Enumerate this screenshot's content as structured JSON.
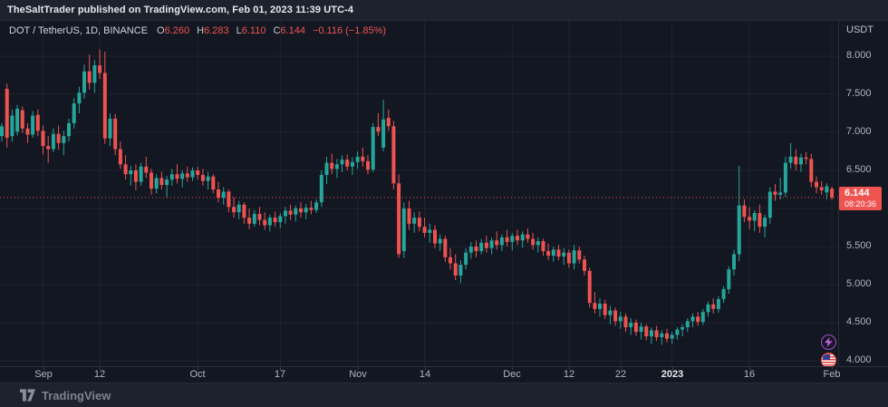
{
  "header": {
    "title": "TheSaltTrader published on TradingView.com, Feb 01, 2023 11:39 UTC-4"
  },
  "legend": {
    "symbol": "DOT / TetherUS, 1D, BINANCE",
    "o_label": "O",
    "open": "6.260",
    "h_label": "H",
    "high": "6.283",
    "l_label": "L",
    "low": "6.110",
    "c_label": "C",
    "close": "6.144",
    "change": "−0.116 (−1.85%)"
  },
  "price_scale": {
    "currency": "USDT",
    "last_price": "6.144",
    "countdown": "08:20:36"
  },
  "footer": {
    "brand": "TradingView"
  },
  "icons": {
    "bottom_right": [
      "lightning-icon",
      "us-flag-icon"
    ]
  },
  "colors": {
    "background": "#131722",
    "frame": "#1e222d",
    "up": "#26a69a",
    "down": "#ef5350",
    "price_label_bg": "#ef5350",
    "grid": "rgba(178,181,190,0.08)",
    "axis_text": "#b2b5be"
  },
  "chart_data": {
    "type": "candlestick",
    "title": "DOT / TetherUS, 1D, BINANCE",
    "ylabel": "USDT",
    "ylim": [
      3.93,
      8.44
    ],
    "grid": true,
    "last_price": 6.144,
    "y_gridlines": [
      8.0,
      7.5,
      7.0,
      6.5,
      6.0,
      5.5,
      5.0,
      4.5,
      4.0
    ],
    "y_labels": [
      {
        "value": 8.0,
        "text": "8.000"
      },
      {
        "value": 7.5,
        "text": "7.500"
      },
      {
        "value": 7.0,
        "text": "7.000"
      },
      {
        "value": 6.5,
        "text": "6.500"
      },
      {
        "value": 5.5,
        "text": "5.500"
      },
      {
        "value": 5.0,
        "text": "5.000"
      },
      {
        "value": 4.5,
        "text": "4.500"
      },
      {
        "value": 4.0,
        "text": "4.000"
      }
    ],
    "x_ticks": [
      {
        "label": "Sep",
        "day": 8
      },
      {
        "label": "12",
        "day": 19
      },
      {
        "label": "Oct",
        "day": 38
      },
      {
        "label": "17",
        "day": 54
      },
      {
        "label": "Nov",
        "day": 69
      },
      {
        "label": "14",
        "day": 82
      },
      {
        "label": "Dec",
        "day": 99
      },
      {
        "label": "12",
        "day": 110
      },
      {
        "label": "22",
        "day": 120
      },
      {
        "label": "2023",
        "day": 130,
        "strong": true
      },
      {
        "label": "16",
        "day": 145
      },
      {
        "label": "Feb",
        "day": 161
      }
    ],
    "date_range": [
      "Aug 24 2022",
      "Feb 01 2023"
    ],
    "candles": [
      [
        6.95,
        7.12,
        6.88,
        7.08
      ],
      [
        7.57,
        7.64,
        6.8,
        6.93
      ],
      [
        6.95,
        7.3,
        6.88,
        7.22
      ],
      [
        7.01,
        7.36,
        6.96,
        7.31
      ],
      [
        7.29,
        7.34,
        6.99,
        7.05
      ],
      [
        7.05,
        7.12,
        6.86,
        6.97
      ],
      [
        6.97,
        7.28,
        6.93,
        7.22
      ],
      [
        7.23,
        7.3,
        6.95,
        7.02
      ],
      [
        7.02,
        7.09,
        6.71,
        6.82
      ],
      [
        6.82,
        6.95,
        6.6,
        6.78
      ],
      [
        6.78,
        7.05,
        6.74,
        6.98
      ],
      [
        6.98,
        7.09,
        6.77,
        6.86
      ],
      [
        6.86,
        7.02,
        6.7,
        6.95
      ],
      [
        6.95,
        7.18,
        6.88,
        7.12
      ],
      [
        7.12,
        7.45,
        7.05,
        7.38
      ],
      [
        7.38,
        7.6,
        7.25,
        7.52
      ],
      [
        7.52,
        7.89,
        7.44,
        7.8
      ],
      [
        7.8,
        8.02,
        7.56,
        7.65
      ],
      [
        7.65,
        7.95,
        7.52,
        7.88
      ],
      [
        7.88,
        8.09,
        7.7,
        7.78
      ],
      [
        7.78,
        8.06,
        6.85,
        6.92
      ],
      [
        6.92,
        7.25,
        6.82,
        7.18
      ],
      [
        7.18,
        7.24,
        6.7,
        6.78
      ],
      [
        6.78,
        6.88,
        6.52,
        6.58
      ],
      [
        6.58,
        6.7,
        6.38,
        6.45
      ],
      [
        6.45,
        6.56,
        6.3,
        6.5
      ],
      [
        6.5,
        6.58,
        6.24,
        6.35
      ],
      [
        6.35,
        6.6,
        6.3,
        6.55
      ],
      [
        6.55,
        6.68,
        6.4,
        6.47
      ],
      [
        6.47,
        6.52,
        6.18,
        6.26
      ],
      [
        6.26,
        6.45,
        6.2,
        6.4
      ],
      [
        6.4,
        6.48,
        6.25,
        6.31
      ],
      [
        6.31,
        6.43,
        6.15,
        6.38
      ],
      [
        6.38,
        6.52,
        6.3,
        6.45
      ],
      [
        6.45,
        6.58,
        6.33,
        6.39
      ],
      [
        6.39,
        6.5,
        6.28,
        6.46
      ],
      [
        6.46,
        6.55,
        6.35,
        6.41
      ],
      [
        6.41,
        6.54,
        6.36,
        6.5
      ],
      [
        6.5,
        6.55,
        6.38,
        6.44
      ],
      [
        6.44,
        6.52,
        6.3,
        6.36
      ],
      [
        6.36,
        6.48,
        6.25,
        6.42
      ],
      [
        6.42,
        6.45,
        6.2,
        6.25
      ],
      [
        6.25,
        6.35,
        6.08,
        6.14
      ],
      [
        6.14,
        6.28,
        6.05,
        6.22
      ],
      [
        6.22,
        6.25,
        5.95,
        6.02
      ],
      [
        6.02,
        6.15,
        5.88,
        5.95
      ],
      [
        5.95,
        6.1,
        5.86,
        6.05
      ],
      [
        6.05,
        6.08,
        5.8,
        5.88
      ],
      [
        5.88,
        6.0,
        5.73,
        5.8
      ],
      [
        5.8,
        5.98,
        5.76,
        5.93
      ],
      [
        5.93,
        6.02,
        5.78,
        5.85
      ],
      [
        5.85,
        5.95,
        5.72,
        5.78
      ],
      [
        5.78,
        5.92,
        5.7,
        5.88
      ],
      [
        5.88,
        5.96,
        5.76,
        5.82
      ],
      [
        5.82,
        5.94,
        5.74,
        5.9
      ],
      [
        5.9,
        6.02,
        5.8,
        5.97
      ],
      [
        5.97,
        6.05,
        5.85,
        5.92
      ],
      [
        5.92,
        6.04,
        5.83,
        6.0
      ],
      [
        6.0,
        6.08,
        5.88,
        5.95
      ],
      [
        5.95,
        6.06,
        5.86,
        6.01
      ],
      [
        6.01,
        6.1,
        5.92,
        5.98
      ],
      [
        5.98,
        6.12,
        5.94,
        6.08
      ],
      [
        6.08,
        6.5,
        6.02,
        6.44
      ],
      [
        6.44,
        6.68,
        6.32,
        6.6
      ],
      [
        6.6,
        6.72,
        6.45,
        6.52
      ],
      [
        6.52,
        6.65,
        6.4,
        6.58
      ],
      [
        6.58,
        6.7,
        6.48,
        6.64
      ],
      [
        6.64,
        6.71,
        6.5,
        6.55
      ],
      [
        6.55,
        6.67,
        6.44,
        6.61
      ],
      [
        6.61,
        6.75,
        6.52,
        6.68
      ],
      [
        6.68,
        6.8,
        6.55,
        6.62
      ],
      [
        6.62,
        6.7,
        6.45,
        6.51
      ],
      [
        6.51,
        7.12,
        6.48,
        7.07
      ],
      [
        7.07,
        7.25,
        6.95,
        7.01
      ],
      [
        6.8,
        7.43,
        6.75,
        7.17
      ],
      [
        7.19,
        7.3,
        7.02,
        7.08
      ],
      [
        7.08,
        7.15,
        6.25,
        6.33
      ],
      [
        6.33,
        6.45,
        5.35,
        5.4
      ],
      [
        5.44,
        6.08,
        5.35,
        6.0
      ],
      [
        6.0,
        6.1,
        5.72,
        5.8
      ],
      [
        5.8,
        5.95,
        5.68,
        5.88
      ],
      [
        5.88,
        5.96,
        5.7,
        5.76
      ],
      [
        5.76,
        5.88,
        5.62,
        5.68
      ],
      [
        5.68,
        5.8,
        5.55,
        5.72
      ],
      [
        5.72,
        5.78,
        5.48,
        5.54
      ],
      [
        5.54,
        5.66,
        5.44,
        5.6
      ],
      [
        5.6,
        5.64,
        5.3,
        5.36
      ],
      [
        5.36,
        5.48,
        5.2,
        5.28
      ],
      [
        5.28,
        5.4,
        5.06,
        5.12
      ],
      [
        5.12,
        5.32,
        5.02,
        5.26
      ],
      [
        5.26,
        5.48,
        5.2,
        5.42
      ],
      [
        5.42,
        5.56,
        5.34,
        5.5
      ],
      [
        5.5,
        5.58,
        5.36,
        5.44
      ],
      [
        5.44,
        5.6,
        5.4,
        5.55
      ],
      [
        5.55,
        5.64,
        5.42,
        5.48
      ],
      [
        5.48,
        5.62,
        5.4,
        5.58
      ],
      [
        5.58,
        5.7,
        5.46,
        5.52
      ],
      [
        5.52,
        5.66,
        5.44,
        5.62
      ],
      [
        5.62,
        5.72,
        5.5,
        5.56
      ],
      [
        5.56,
        5.68,
        5.45,
        5.64
      ],
      [
        5.64,
        5.72,
        5.52,
        5.58
      ],
      [
        5.58,
        5.7,
        5.48,
        5.66
      ],
      [
        5.66,
        5.74,
        5.55,
        5.6
      ],
      [
        5.6,
        5.68,
        5.46,
        5.52
      ],
      [
        5.52,
        5.62,
        5.42,
        5.57
      ],
      [
        5.57,
        5.6,
        5.38,
        5.44
      ],
      [
        5.44,
        5.54,
        5.32,
        5.38
      ],
      [
        5.38,
        5.5,
        5.3,
        5.46
      ],
      [
        5.46,
        5.52,
        5.32,
        5.37
      ],
      [
        5.37,
        5.48,
        5.26,
        5.42
      ],
      [
        5.42,
        5.46,
        5.22,
        5.28
      ],
      [
        5.28,
        5.52,
        5.2,
        5.45
      ],
      [
        5.45,
        5.5,
        5.28,
        5.33
      ],
      [
        5.33,
        5.38,
        5.12,
        5.18
      ],
      [
        5.18,
        5.22,
        4.7,
        4.76
      ],
      [
        4.76,
        4.9,
        4.62,
        4.68
      ],
      [
        4.68,
        4.82,
        4.58,
        4.75
      ],
      [
        4.75,
        4.8,
        4.55,
        4.6
      ],
      [
        4.6,
        4.72,
        4.48,
        4.66
      ],
      [
        4.66,
        4.7,
        4.46,
        4.52
      ],
      [
        4.52,
        4.64,
        4.42,
        4.58
      ],
      [
        4.58,
        4.62,
        4.38,
        4.44
      ],
      [
        4.44,
        4.56,
        4.34,
        4.5
      ],
      [
        4.5,
        4.54,
        4.33,
        4.38
      ],
      [
        4.38,
        4.5,
        4.28,
        4.45
      ],
      [
        4.45,
        4.48,
        4.27,
        4.32
      ],
      [
        4.32,
        4.44,
        4.22,
        4.4
      ],
      [
        4.4,
        4.46,
        4.26,
        4.31
      ],
      [
        4.31,
        4.4,
        4.21,
        4.36
      ],
      [
        4.36,
        4.42,
        4.24,
        4.29
      ],
      [
        4.29,
        4.38,
        4.22,
        4.34
      ],
      [
        4.34,
        4.44,
        4.28,
        4.41
      ],
      [
        4.41,
        4.48,
        4.32,
        4.44
      ],
      [
        4.44,
        4.56,
        4.38,
        4.52
      ],
      [
        4.52,
        4.62,
        4.44,
        4.58
      ],
      [
        4.58,
        4.64,
        4.46,
        4.51
      ],
      [
        4.51,
        4.68,
        4.47,
        4.64
      ],
      [
        4.64,
        4.78,
        4.58,
        4.74
      ],
      [
        4.74,
        4.82,
        4.62,
        4.68
      ],
      [
        4.68,
        4.85,
        4.63,
        4.81
      ],
      [
        4.81,
        4.98,
        4.76,
        4.94
      ],
      [
        4.94,
        5.24,
        4.88,
        5.2
      ],
      [
        5.2,
        5.46,
        5.12,
        5.4
      ],
      [
        5.4,
        6.56,
        5.31,
        6.04
      ],
      [
        6.04,
        6.12,
        5.82,
        5.89
      ],
      [
        5.89,
        6.02,
        5.73,
        5.84
      ],
      [
        5.84,
        5.98,
        5.7,
        5.94
      ],
      [
        5.94,
        6.05,
        5.68,
        5.76
      ],
      [
        5.76,
        5.92,
        5.62,
        5.88
      ],
      [
        5.88,
        6.28,
        5.8,
        6.22
      ],
      [
        6.22,
        6.32,
        6.1,
        6.18
      ],
      [
        6.18,
        6.4,
        6.12,
        6.21
      ],
      [
        6.21,
        6.68,
        6.15,
        6.6
      ],
      [
        6.6,
        6.86,
        6.52,
        6.68
      ],
      [
        6.68,
        6.78,
        6.5,
        6.58
      ],
      [
        6.58,
        6.72,
        6.48,
        6.67
      ],
      [
        6.67,
        6.74,
        6.58,
        6.65
      ],
      [
        6.65,
        6.72,
        6.28,
        6.35
      ],
      [
        6.35,
        6.42,
        6.2,
        6.28
      ],
      [
        6.28,
        6.36,
        6.18,
        6.24
      ],
      [
        6.21,
        6.33,
        6.12,
        6.29
      ],
      [
        6.26,
        6.283,
        6.11,
        6.144
      ]
    ]
  }
}
